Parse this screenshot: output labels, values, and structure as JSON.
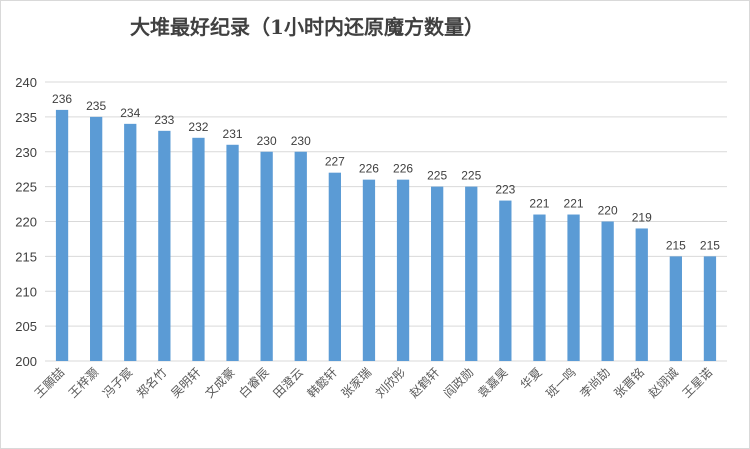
{
  "chart_data": {
    "type": "bar",
    "title": "大堆最好纪录（1小时内还原魔方数量）",
    "categories": [
      "王願喆",
      "王梓灏",
      "冯子宸",
      "郑名竹",
      "吴明轩",
      "文成豪",
      "白睿辰",
      "田澄云",
      "韩懿轩",
      "张家瑞",
      "刘欣彤",
      "赵鹤轩",
      "阎政勋",
      "袁嘉昊",
      "华夏",
      "班一鸣",
      "李尚劼",
      "张晋铭",
      "赵翊诚",
      "王星诺"
    ],
    "values": [
      236,
      235,
      234,
      233,
      232,
      231,
      230,
      230,
      227,
      226,
      226,
      225,
      225,
      223,
      221,
      221,
      220,
      219,
      215,
      215
    ],
    "ylim": [
      200,
      240
    ],
    "yticks": [
      200,
      205,
      210,
      215,
      220,
      225,
      230,
      235,
      240
    ],
    "grid": true,
    "bar_color": "#5b9bd5",
    "grid_color": "#d9d9d9",
    "xlabel": "",
    "ylabel": ""
  }
}
